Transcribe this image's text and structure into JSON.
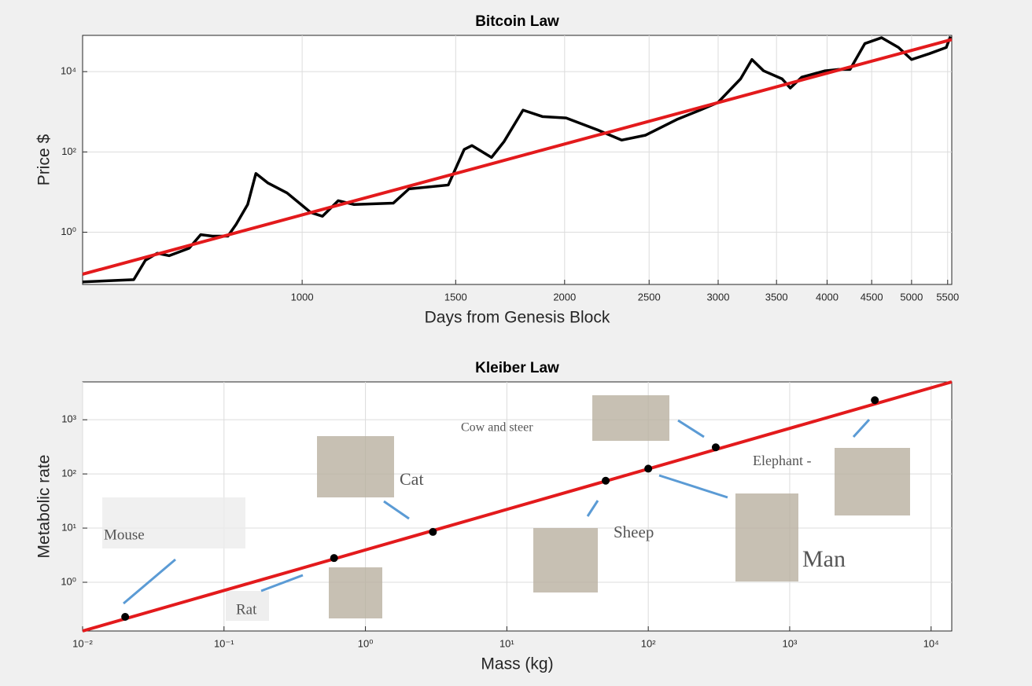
{
  "chart_data": [
    {
      "type": "line",
      "title": "Bitcoin Law",
      "x_label": "Days from Genesis Block",
      "y_label": "Price $",
      "xscale": "log",
      "yscale": "log",
      "grid": true,
      "xlim": [
        560,
        5560
      ],
      "ylim": [
        0.05,
        80000
      ],
      "xticks": [
        1000,
        1500,
        2000,
        2500,
        3000,
        3500,
        4000,
        4500,
        5000,
        5500
      ],
      "yticks": [
        {
          "value": 1,
          "label": "10⁰"
        },
        {
          "value": 100,
          "label": "10²"
        },
        {
          "value": 10000,
          "label": "10⁴"
        }
      ],
      "series": [
        {
          "color": "#000000",
          "style": "line",
          "x": [
            560,
            641,
            661,
            682,
            704,
            742,
            765,
            789,
            822,
            840,
            866,
            885,
            913,
            961,
            1023,
            1055,
            1100,
            1147,
            1272,
            1326,
            1471,
            1534,
            1566,
            1649,
            1704,
            1792,
            1886,
            2008,
            2184,
            2325,
            2475,
            2689,
            2860,
            2998,
            3183,
            3280,
            3382,
            3552,
            3630,
            3742,
            3980,
            4113,
            4250,
            4420,
            4620,
            4830,
            5000,
            5240,
            5480,
            5540
          ],
          "values": [
            0.058,
            0.066,
            0.2,
            0.3,
            0.26,
            0.4,
            0.87,
            0.8,
            0.8,
            1.57,
            4.9,
            29,
            17,
            9.5,
            3.1,
            2.5,
            6.1,
            4.9,
            5.3,
            12,
            15,
            115,
            144,
            73,
            180,
            1100,
            760,
            700,
            350,
            197,
            260,
            640,
            1100,
            1700,
            6600,
            20000,
            10500,
            6600,
            3900,
            7300,
            10500,
            11300,
            11300,
            50000,
            70000,
            40000,
            20000,
            28000,
            40000,
            75000
          ]
        },
        {
          "color": "#e31a1c",
          "style": "line",
          "x": [
            560,
            5560
          ],
          "values": [
            0.09,
            63000
          ]
        }
      ]
    },
    {
      "type": "line",
      "title": "Kleiber Law",
      "x_label": "Mass (kg)",
      "y_label": "Metabolic rate",
      "xscale": "log",
      "yscale": "log",
      "grid": true,
      "xlim": [
        0.01,
        14000
      ],
      "ylim": [
        0.126,
        5000
      ],
      "xticks": [
        {
          "value": 0.01,
          "label": "10⁻²"
        },
        {
          "value": 0.1,
          "label": "10⁻¹"
        },
        {
          "value": 1,
          "label": "10⁰"
        },
        {
          "value": 10,
          "label": "10¹"
        },
        {
          "value": 100,
          "label": "10²"
        },
        {
          "value": 1000,
          "label": "10³"
        },
        {
          "value": 10000,
          "label": "10⁴"
        }
      ],
      "yticks": [
        {
          "value": 1,
          "label": "10⁰"
        },
        {
          "value": 10,
          "label": "10¹"
        },
        {
          "value": 100,
          "label": "10²"
        },
        {
          "value": 1000,
          "label": "10³"
        }
      ],
      "series": [
        {
          "color": "#e31a1c",
          "style": "line",
          "x": [
            0.01,
            14000
          ],
          "values": [
            0.126,
            5000
          ]
        },
        {
          "color": "#000000",
          "style": "points",
          "x": [
            0.02,
            0.6,
            3,
            50,
            100,
            300,
            4000
          ],
          "values": [
            0.23,
            2.8,
            8.5,
            75,
            125,
            310,
            2300
          ]
        }
      ],
      "annotations": [
        "Mouse",
        "Rat",
        "Cat",
        "Sheep",
        "Man",
        "Cow and steer",
        "Elephant -"
      ]
    }
  ]
}
